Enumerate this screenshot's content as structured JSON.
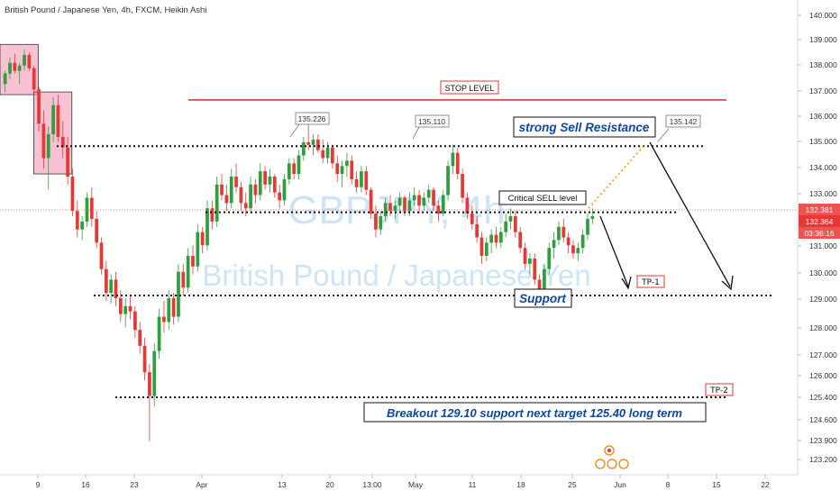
{
  "chart_data": {
    "type": "candlestick",
    "title": "British Pound / Japanese Yen, 4h, FXCM, Heikin Ashi",
    "watermark_symbol": "GBPJPY, 4h",
    "watermark_name": "British Pound / Japanese Yen",
    "ylim": [
      122.7,
      140.7
    ],
    "y_ticks": [
      "140.000",
      "139.000",
      "138.000",
      "137.000",
      "136.000",
      "135.000",
      "134.000",
      "133.000",
      "131.000",
      "130.000",
      "129.000",
      "128.000",
      "127.000",
      "126.000",
      "125.400",
      "124.600",
      "123.900",
      "123.200"
    ],
    "x_ticks": [
      "9",
      "16",
      "23",
      "Apr",
      "13",
      "20",
      "13:00",
      "May",
      "11",
      "18",
      "25",
      "Jun",
      "8",
      "15",
      "22"
    ],
    "price_labels": {
      "last": "132.381",
      "second": "132.364",
      "timer": "03:36:16"
    },
    "horizontal_levels": [
      {
        "name": "stop-level",
        "price": 136.8,
        "label": "STOP LEVEL",
        "color": "#e53935",
        "style": "solid"
      },
      {
        "name": "resistance",
        "price": 135.05,
        "label": "",
        "color": "#111111",
        "style": "dotted"
      },
      {
        "name": "critical-sell",
        "price": 132.55,
        "label": "",
        "color": "#111111",
        "style": "dotted"
      },
      {
        "name": "support",
        "price": 129.4,
        "label": "",
        "color": "#111111",
        "style": "dotted"
      },
      {
        "name": "tp2-level",
        "price": 125.55,
        "label": "",
        "color": "#111111",
        "style": "dotted"
      }
    ],
    "text_annotations": {
      "stop_level": "STOP LEVEL",
      "strong_sell": "strong Sell Resistance",
      "critical_sell": "Critical SELL level",
      "support": "Support",
      "tp1": "TP-1",
      "tp2": "TP-2",
      "breakout": "Breakout 129.10 support next target 125.40 long term"
    },
    "callouts": [
      "135.226",
      "135.110",
      "135.142"
    ],
    "highlight_boxes": [
      {
        "from_bar": 0,
        "to_bar": 6,
        "high": 138.9,
        "low": 137.0
      },
      {
        "from_bar": 7,
        "to_bar": 13,
        "high": 137.1,
        "low": 134.0
      }
    ],
    "candles": [
      {
        "o": 137.4,
        "h": 137.9,
        "l": 137.1,
        "c": 137.8
      },
      {
        "o": 137.8,
        "h": 138.4,
        "l": 137.6,
        "c": 138.2
      },
      {
        "o": 138.2,
        "h": 138.55,
        "l": 137.8,
        "c": 137.9
      },
      {
        "o": 137.9,
        "h": 138.2,
        "l": 137.4,
        "c": 138.1
      },
      {
        "o": 138.1,
        "h": 138.7,
        "l": 137.9,
        "c": 138.5
      },
      {
        "o": 138.5,
        "h": 138.6,
        "l": 137.9,
        "c": 138.0
      },
      {
        "o": 138.0,
        "h": 138.1,
        "l": 137.0,
        "c": 137.2
      },
      {
        "o": 137.2,
        "h": 137.3,
        "l": 135.6,
        "c": 135.9
      },
      {
        "o": 135.9,
        "h": 136.4,
        "l": 134.2,
        "c": 134.6
      },
      {
        "o": 134.6,
        "h": 135.8,
        "l": 133.4,
        "c": 135.5
      },
      {
        "o": 135.5,
        "h": 136.9,
        "l": 135.2,
        "c": 136.6
      },
      {
        "o": 136.6,
        "h": 137.0,
        "l": 135.2,
        "c": 135.4
      },
      {
        "o": 135.4,
        "h": 136.0,
        "l": 134.6,
        "c": 135.0
      },
      {
        "o": 135.0,
        "h": 135.4,
        "l": 133.6,
        "c": 133.9
      },
      {
        "o": 133.9,
        "h": 134.2,
        "l": 132.4,
        "c": 132.6
      },
      {
        "o": 132.6,
        "h": 133.0,
        "l": 131.6,
        "c": 131.9
      },
      {
        "o": 131.9,
        "h": 132.4,
        "l": 131.5,
        "c": 132.2
      },
      {
        "o": 132.2,
        "h": 133.3,
        "l": 132.0,
        "c": 133.1
      },
      {
        "o": 133.1,
        "h": 133.5,
        "l": 132.0,
        "c": 132.3
      },
      {
        "o": 132.3,
        "h": 132.6,
        "l": 131.2,
        "c": 131.4
      },
      {
        "o": 131.4,
        "h": 131.6,
        "l": 130.2,
        "c": 130.4
      },
      {
        "o": 130.4,
        "h": 130.7,
        "l": 129.2,
        "c": 129.5
      },
      {
        "o": 129.5,
        "h": 130.2,
        "l": 129.1,
        "c": 130.0
      },
      {
        "o": 130.0,
        "h": 130.3,
        "l": 129.0,
        "c": 129.3
      },
      {
        "o": 129.3,
        "h": 129.6,
        "l": 128.4,
        "c": 128.7
      },
      {
        "o": 128.7,
        "h": 129.3,
        "l": 128.2,
        "c": 129.0
      },
      {
        "o": 129.0,
        "h": 129.4,
        "l": 128.5,
        "c": 128.8
      },
      {
        "o": 128.8,
        "h": 129.0,
        "l": 127.8,
        "c": 128.1
      },
      {
        "o": 128.1,
        "h": 128.4,
        "l": 127.2,
        "c": 127.5
      },
      {
        "o": 127.5,
        "h": 127.8,
        "l": 126.2,
        "c": 126.5
      },
      {
        "o": 126.5,
        "h": 126.8,
        "l": 123.9,
        "c": 125.6
      },
      {
        "o": 125.6,
        "h": 127.6,
        "l": 125.2,
        "c": 127.3
      },
      {
        "o": 127.3,
        "h": 128.9,
        "l": 127.0,
        "c": 128.6
      },
      {
        "o": 128.6,
        "h": 129.2,
        "l": 128.0,
        "c": 128.4
      },
      {
        "o": 128.4,
        "h": 129.6,
        "l": 128.1,
        "c": 129.3
      },
      {
        "o": 129.3,
        "h": 129.5,
        "l": 128.3,
        "c": 128.6
      },
      {
        "o": 128.6,
        "h": 130.6,
        "l": 128.4,
        "c": 130.3
      },
      {
        "o": 130.3,
        "h": 130.6,
        "l": 129.4,
        "c": 129.7
      },
      {
        "o": 129.7,
        "h": 131.2,
        "l": 129.5,
        "c": 130.9
      },
      {
        "o": 130.9,
        "h": 131.3,
        "l": 130.2,
        "c": 130.5
      },
      {
        "o": 130.5,
        "h": 132.1,
        "l": 130.3,
        "c": 131.8
      },
      {
        "o": 131.8,
        "h": 132.0,
        "l": 131.0,
        "c": 131.3
      },
      {
        "o": 131.3,
        "h": 133.0,
        "l": 131.1,
        "c": 132.7
      },
      {
        "o": 132.7,
        "h": 133.0,
        "l": 131.9,
        "c": 132.2
      },
      {
        "o": 132.2,
        "h": 133.9,
        "l": 132.0,
        "c": 133.6
      },
      {
        "o": 133.6,
        "h": 134.0,
        "l": 133.0,
        "c": 133.2
      },
      {
        "o": 133.2,
        "h": 133.6,
        "l": 132.6,
        "c": 132.9
      },
      {
        "o": 132.9,
        "h": 134.2,
        "l": 132.7,
        "c": 133.9
      },
      {
        "o": 133.9,
        "h": 134.4,
        "l": 133.3,
        "c": 133.5
      },
      {
        "o": 133.5,
        "h": 133.7,
        "l": 132.6,
        "c": 132.9
      },
      {
        "o": 132.9,
        "h": 133.3,
        "l": 132.4,
        "c": 132.7
      },
      {
        "o": 132.7,
        "h": 133.9,
        "l": 132.5,
        "c": 133.6
      },
      {
        "o": 133.6,
        "h": 133.8,
        "l": 132.9,
        "c": 133.2
      },
      {
        "o": 133.2,
        "h": 134.4,
        "l": 133.0,
        "c": 134.1
      },
      {
        "o": 134.1,
        "h": 134.3,
        "l": 133.4,
        "c": 133.6
      },
      {
        "o": 133.6,
        "h": 134.2,
        "l": 133.3,
        "c": 133.9
      },
      {
        "o": 133.9,
        "h": 134.0,
        "l": 133.1,
        "c": 133.3
      },
      {
        "o": 133.3,
        "h": 133.6,
        "l": 132.7,
        "c": 133.0
      },
      {
        "o": 133.0,
        "h": 134.0,
        "l": 132.8,
        "c": 133.8
      },
      {
        "o": 133.8,
        "h": 134.6,
        "l": 133.6,
        "c": 134.4
      },
      {
        "o": 134.4,
        "h": 134.6,
        "l": 133.8,
        "c": 134.0
      },
      {
        "o": 134.0,
        "h": 134.9,
        "l": 133.8,
        "c": 134.7
      },
      {
        "o": 134.7,
        "h": 135.4,
        "l": 134.5,
        "c": 135.2
      },
      {
        "o": 135.2,
        "h": 135.9,
        "l": 134.9,
        "c": 135.1
      },
      {
        "o": 135.1,
        "h": 135.5,
        "l": 134.7,
        "c": 135.3
      },
      {
        "o": 135.3,
        "h": 135.5,
        "l": 134.8,
        "c": 134.9
      },
      {
        "o": 134.9,
        "h": 135.3,
        "l": 134.4,
        "c": 134.6
      },
      {
        "o": 134.6,
        "h": 135.2,
        "l": 134.4,
        "c": 135.0
      },
      {
        "o": 135.0,
        "h": 135.1,
        "l": 134.2,
        "c": 134.4
      },
      {
        "o": 134.4,
        "h": 134.7,
        "l": 133.7,
        "c": 134.0
      },
      {
        "o": 134.0,
        "h": 134.5,
        "l": 133.5,
        "c": 134.3
      },
      {
        "o": 134.3,
        "h": 134.8,
        "l": 133.9,
        "c": 134.5
      },
      {
        "o": 134.5,
        "h": 134.7,
        "l": 133.6,
        "c": 133.8
      },
      {
        "o": 133.8,
        "h": 134.1,
        "l": 133.3,
        "c": 133.5
      },
      {
        "o": 133.5,
        "h": 134.3,
        "l": 133.3,
        "c": 134.1
      },
      {
        "o": 134.1,
        "h": 134.3,
        "l": 133.2,
        "c": 133.4
      },
      {
        "o": 133.4,
        "h": 133.5,
        "l": 132.3,
        "c": 132.5
      },
      {
        "o": 132.5,
        "h": 132.8,
        "l": 131.6,
        "c": 131.9
      },
      {
        "o": 131.9,
        "h": 132.6,
        "l": 131.7,
        "c": 132.4
      },
      {
        "o": 132.4,
        "h": 133.1,
        "l": 132.2,
        "c": 132.9
      },
      {
        "o": 132.9,
        "h": 133.2,
        "l": 132.4,
        "c": 132.6
      },
      {
        "o": 132.6,
        "h": 133.0,
        "l": 132.3,
        "c": 132.8
      },
      {
        "o": 132.8,
        "h": 133.3,
        "l": 132.6,
        "c": 133.1
      },
      {
        "o": 133.1,
        "h": 133.2,
        "l": 132.4,
        "c": 132.6
      },
      {
        "o": 132.6,
        "h": 133.3,
        "l": 132.4,
        "c": 133.0
      },
      {
        "o": 133.0,
        "h": 133.5,
        "l": 132.8,
        "c": 133.2
      },
      {
        "o": 133.2,
        "h": 133.4,
        "l": 132.5,
        "c": 132.8
      },
      {
        "o": 132.8,
        "h": 133.3,
        "l": 132.6,
        "c": 133.1
      },
      {
        "o": 133.1,
        "h": 133.6,
        "l": 132.9,
        "c": 133.4
      },
      {
        "o": 133.4,
        "h": 133.5,
        "l": 132.6,
        "c": 132.8
      },
      {
        "o": 132.8,
        "h": 133.0,
        "l": 132.2,
        "c": 132.5
      },
      {
        "o": 132.5,
        "h": 133.4,
        "l": 132.4,
        "c": 133.2
      },
      {
        "o": 133.2,
        "h": 134.5,
        "l": 133.0,
        "c": 134.3
      },
      {
        "o": 134.3,
        "h": 135.1,
        "l": 134.0,
        "c": 134.8
      },
      {
        "o": 134.8,
        "h": 135.0,
        "l": 133.8,
        "c": 134.0
      },
      {
        "o": 134.0,
        "h": 134.2,
        "l": 132.9,
        "c": 133.1
      },
      {
        "o": 133.1,
        "h": 133.3,
        "l": 132.3,
        "c": 132.5
      },
      {
        "o": 132.5,
        "h": 132.8,
        "l": 131.9,
        "c": 132.1
      },
      {
        "o": 132.1,
        "h": 132.4,
        "l": 131.4,
        "c": 131.6
      },
      {
        "o": 131.6,
        "h": 131.8,
        "l": 130.6,
        "c": 130.9
      },
      {
        "o": 130.9,
        "h": 131.6,
        "l": 130.7,
        "c": 131.4
      },
      {
        "o": 131.4,
        "h": 131.9,
        "l": 131.0,
        "c": 131.7
      },
      {
        "o": 131.7,
        "h": 132.0,
        "l": 131.2,
        "c": 131.4
      },
      {
        "o": 131.4,
        "h": 132.0,
        "l": 131.2,
        "c": 131.8
      },
      {
        "o": 131.8,
        "h": 132.5,
        "l": 131.6,
        "c": 132.2
      },
      {
        "o": 132.2,
        "h": 132.7,
        "l": 131.9,
        "c": 132.4
      },
      {
        "o": 132.4,
        "h": 132.6,
        "l": 131.6,
        "c": 131.8
      },
      {
        "o": 131.8,
        "h": 132.0,
        "l": 131.0,
        "c": 131.2
      },
      {
        "o": 131.2,
        "h": 131.4,
        "l": 130.4,
        "c": 130.6
      },
      {
        "o": 130.6,
        "h": 131.0,
        "l": 130.2,
        "c": 130.8
      },
      {
        "o": 130.8,
        "h": 131.0,
        "l": 129.8,
        "c": 130.0
      },
      {
        "o": 130.0,
        "h": 130.2,
        "l": 129.3,
        "c": 129.6
      },
      {
        "o": 129.6,
        "h": 130.6,
        "l": 129.4,
        "c": 130.4
      },
      {
        "o": 130.4,
        "h": 131.4,
        "l": 130.2,
        "c": 131.2
      },
      {
        "o": 131.2,
        "h": 131.8,
        "l": 130.8,
        "c": 131.5
      },
      {
        "o": 131.5,
        "h": 132.2,
        "l": 131.3,
        "c": 132.0
      },
      {
        "o": 132.0,
        "h": 132.3,
        "l": 131.4,
        "c": 131.6
      },
      {
        "o": 131.6,
        "h": 131.8,
        "l": 131.0,
        "c": 131.3
      },
      {
        "o": 131.3,
        "h": 131.5,
        "l": 130.8,
        "c": 131.0
      },
      {
        "o": 131.0,
        "h": 131.4,
        "l": 130.7,
        "c": 131.2
      },
      {
        "o": 131.2,
        "h": 131.9,
        "l": 131.0,
        "c": 131.7
      },
      {
        "o": 131.7,
        "h": 132.5,
        "l": 131.5,
        "c": 132.3
      },
      {
        "o": 132.3,
        "h": 132.7,
        "l": 132.1,
        "c": 132.4
      }
    ],
    "colors": {
      "up": "#26a69a",
      "down": "#ef5350",
      "up_candle": "#2e9e3e",
      "down_candle": "#e53935",
      "highlight_fill": "#f48fb1",
      "label_text": "#0d47a1",
      "last_price_bg": "#ef5350",
      "dotted_orange": "#ff9800"
    }
  }
}
